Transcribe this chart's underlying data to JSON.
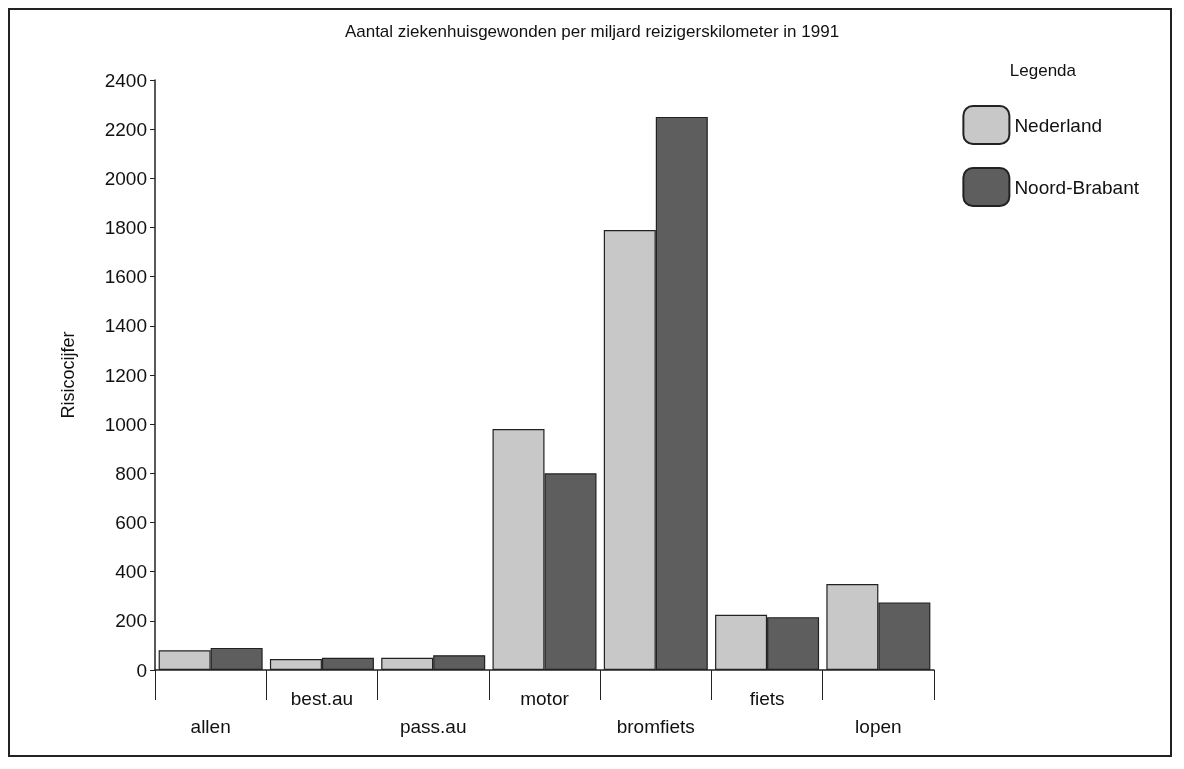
{
  "chart_data": {
    "type": "bar",
    "title": "Aantal ziekenhuisgewonden per miljard reizigerskilometer in 1991",
    "ylabel": "Risicocijfer",
    "legend_title": "Legenda",
    "categories": [
      "allen",
      "best.au",
      "pass.au",
      "motor",
      "bromfiets",
      "fiets",
      "lopen"
    ],
    "series": [
      {
        "name": "Nederland",
        "color": "#c8c8c8",
        "values": [
          80,
          45,
          50,
          980,
          1790,
          225,
          350
        ]
      },
      {
        "name": "Noord-Brabant",
        "color": "#5e5e5e",
        "values": [
          90,
          50,
          60,
          800,
          2250,
          215,
          275
        ]
      }
    ],
    "ylim": [
      0,
      2400
    ],
    "yticks": [
      0,
      200,
      400,
      600,
      800,
      1000,
      1200,
      1400,
      1600,
      1800,
      2000,
      2200,
      2400
    ],
    "grid": false,
    "legend": "top right"
  }
}
